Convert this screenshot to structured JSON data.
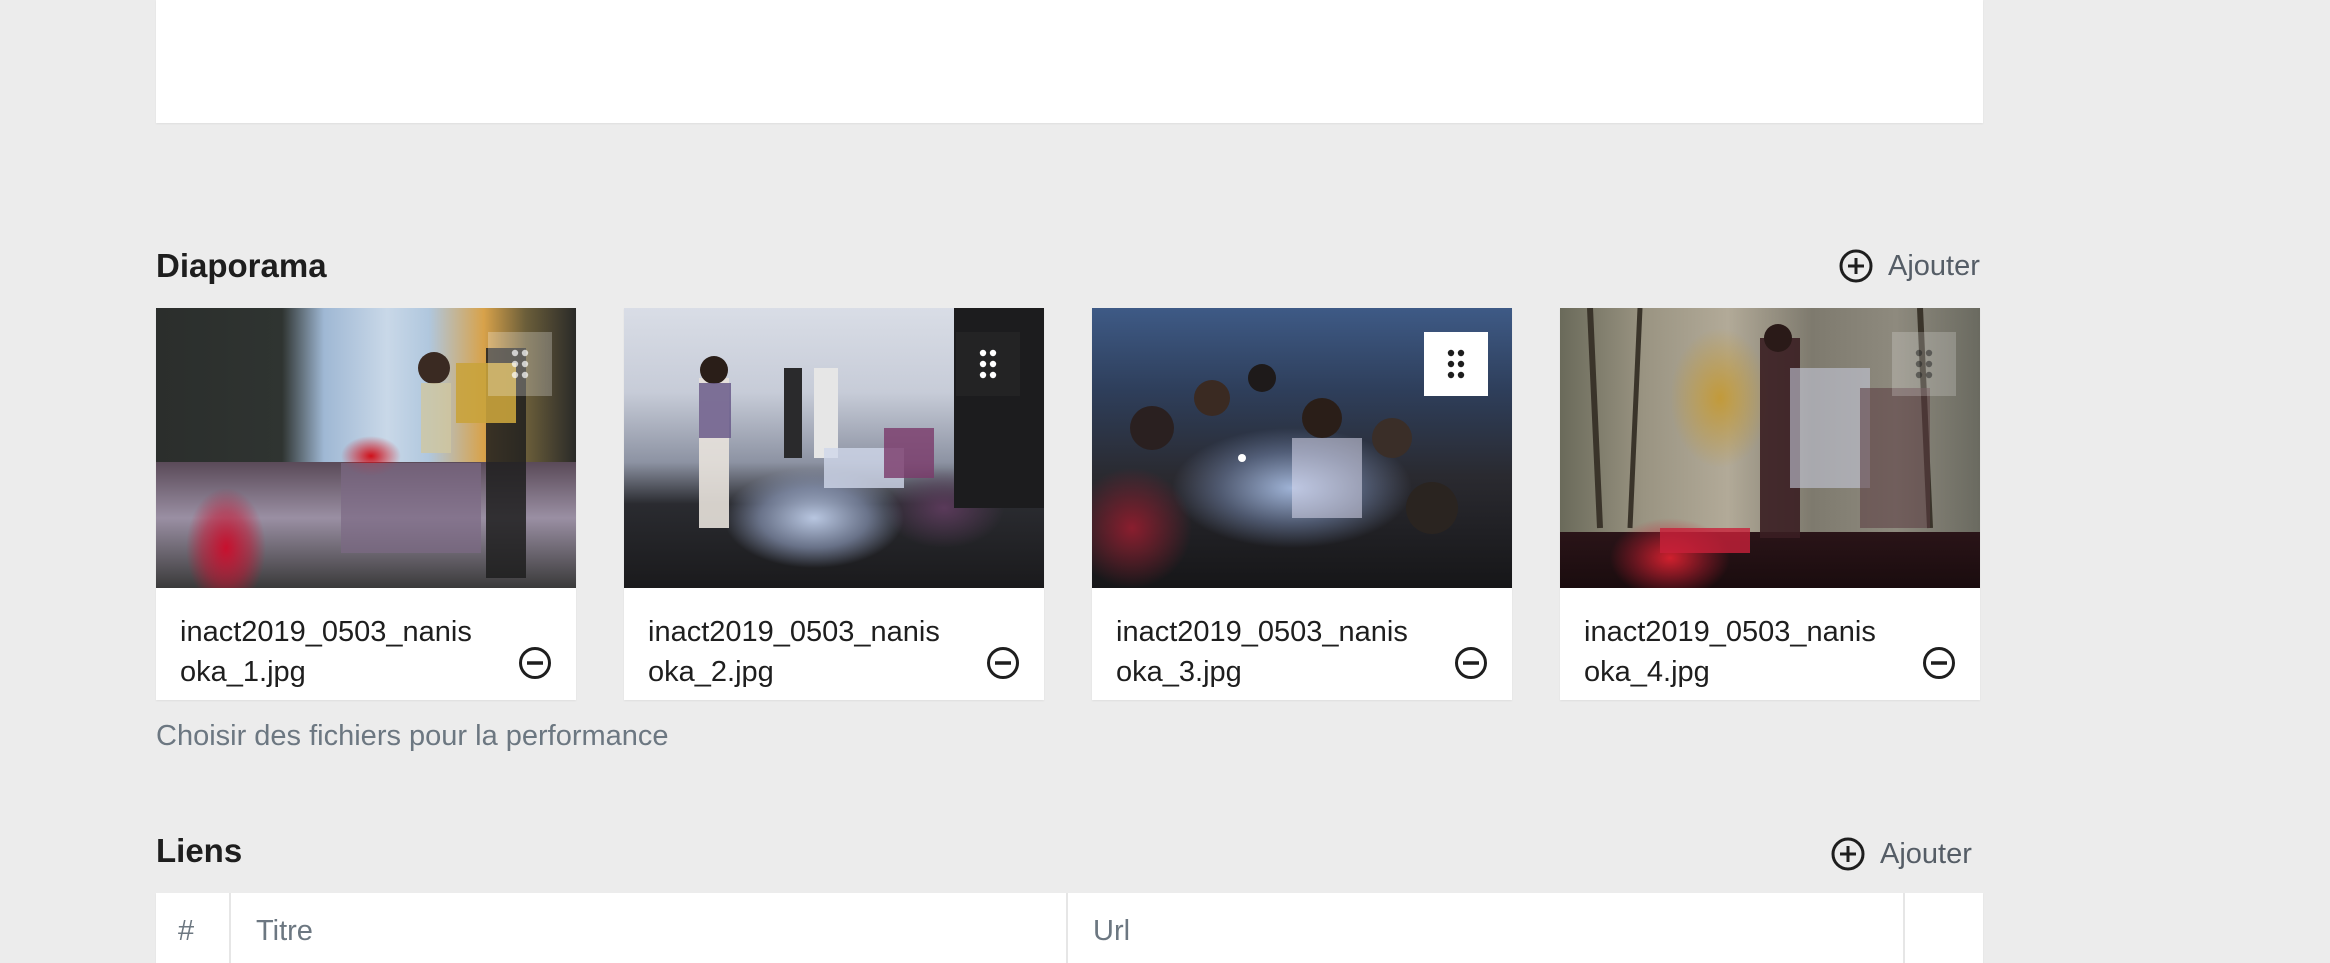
{
  "diaporama": {
    "title": "Diaporama",
    "add_label": "Ajouter",
    "help_text": "Choisir des fichiers pour la performance",
    "items": [
      {
        "filename": "inact2019_0503_nanisoka_1.jpg"
      },
      {
        "filename": "inact2019_0503_nanisoka_2.jpg"
      },
      {
        "filename": "inact2019_0503_nanisoka_3.jpg"
      },
      {
        "filename": "inact2019_0503_nanisoka_4.jpg"
      }
    ]
  },
  "liens": {
    "title": "Liens",
    "add_label": "Ajouter",
    "columns": [
      "#",
      "Titre",
      "Url",
      ""
    ]
  },
  "icons": {
    "add": "plus-circle-icon",
    "remove": "minus-circle-icon",
    "drag": "drag-handle-icon"
  },
  "colors": {
    "background": "#ececec",
    "panel": "#ffffff",
    "text": "#1e1e1e",
    "muted": "#6c7781"
  }
}
